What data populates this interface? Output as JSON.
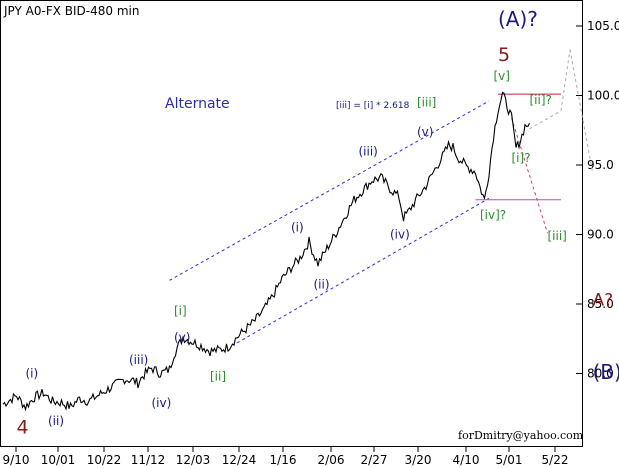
{
  "chart_data": {
    "type": "line",
    "title": "JPY A0-FX BID-480 min",
    "watermark": "forDmitry@yahoo.com",
    "xlabel": "",
    "ylabel": "",
    "ylim": [
      74.0,
      107.0
    ],
    "x_tick_labels": [
      "9/10",
      "10/01",
      "10/22",
      "11/12",
      "12/03",
      "12/24",
      "1/16",
      "2/06",
      "2/27",
      "3/20",
      "4/10",
      "5/01",
      "5/22"
    ],
    "y_tick_labels": [
      "80.0",
      "85.0",
      "90.0",
      "95.0",
      "100.0",
      "105.0"
    ],
    "y_ticks": [
      80,
      85,
      90,
      95,
      100,
      105
    ],
    "grid": false,
    "series": [
      {
        "name": "",
        "color": "#000000",
        "points": [
          [
            0,
            77.8
          ],
          [
            3,
            78.4
          ],
          [
            5,
            77.6
          ],
          [
            7,
            78.3
          ],
          [
            9,
            78.6
          ],
          [
            11,
            78.0
          ],
          [
            13,
            77.9
          ],
          [
            15,
            77.6
          ],
          [
            17,
            78.2
          ],
          [
            19,
            78.0
          ],
          [
            21,
            78.4
          ],
          [
            23,
            78.8
          ],
          [
            25,
            79.2
          ],
          [
            27,
            79.6
          ],
          [
            29,
            79.5
          ],
          [
            30,
            79.3
          ],
          [
            31,
            79.8
          ],
          [
            33,
            80.4
          ],
          [
            35,
            80.0
          ],
          [
            37,
            80.3
          ],
          [
            38,
            81.4
          ],
          [
            39,
            82.0
          ],
          [
            40,
            82.6
          ],
          [
            42,
            82.3
          ],
          [
            44,
            82.0
          ],
          [
            46,
            81.6
          ],
          [
            48,
            81.7
          ],
          [
            50,
            81.9
          ],
          [
            52,
            82.6
          ],
          [
            54,
            83.2
          ],
          [
            56,
            83.8
          ],
          [
            58,
            84.6
          ],
          [
            60,
            85.6
          ],
          [
            62,
            86.8
          ],
          [
            64,
            87.6
          ],
          [
            66,
            88.3
          ],
          [
            68,
            89.5
          ],
          [
            69,
            88.6
          ],
          [
            70,
            87.9
          ],
          [
            72,
            89.0
          ],
          [
            74,
            90.1
          ],
          [
            76,
            91.3
          ],
          [
            78,
            92.5
          ],
          [
            80,
            93.2
          ],
          [
            82,
            93.9
          ],
          [
            84,
            94.1
          ],
          [
            86,
            93.3
          ],
          [
            88,
            92.7
          ],
          [
            89,
            91.2
          ],
          [
            90,
            91.6
          ],
          [
            92,
            92.6
          ],
          [
            94,
            93.5
          ],
          [
            96,
            94.7
          ],
          [
            98,
            95.8
          ],
          [
            99,
            96.4
          ],
          [
            100,
            96.3
          ],
          [
            101,
            95.6
          ],
          [
            103,
            94.9
          ],
          [
            105,
            94.5
          ],
          [
            106,
            93.4
          ],
          [
            107,
            92.5
          ],
          [
            108,
            94.5
          ],
          [
            109,
            97.1
          ],
          [
            110,
            99.0
          ],
          [
            111,
            100.1
          ],
          [
            112,
            99.3
          ],
          [
            113,
            98.4
          ],
          [
            114,
            96.2
          ],
          [
            115,
            96.8
          ],
          [
            116,
            97.8
          ],
          [
            117,
            98.0
          ]
        ]
      }
    ],
    "guide_lines": [
      {
        "kind": "channel",
        "color": "#2d2de0",
        "from": [
          37,
          86.7
        ],
        "to": [
          108,
          99.6
        ]
      },
      {
        "kind": "channel",
        "color": "#2d2de0",
        "from": [
          52,
          82.2
        ],
        "to": [
          108,
          92.6
        ]
      },
      {
        "kind": "resistance",
        "color": "#c0203a",
        "from": [
          110,
          100.1
        ],
        "to": [
          124,
          100.1
        ]
      },
      {
        "kind": "support",
        "color": "#d43fd4",
        "from": [
          105,
          92.5
        ],
        "to": [
          124,
          92.5
        ]
      },
      {
        "kind": "projection",
        "color": "#d43f6a",
        "from": [
          113,
          98.4
        ],
        "to": [
          121,
          90.1
        ]
      },
      {
        "kind": "projection",
        "color": "#aaaaaa",
        "from": [
          117,
          97.6
        ],
        "to": [
          124,
          98.9
        ]
      },
      {
        "kind": "projection",
        "color": "#aaaaaa",
        "from": [
          124,
          98.9
        ],
        "to": [
          126,
          103.3
        ]
      },
      {
        "kind": "projection",
        "color": "#aaaaaa",
        "from": [
          126,
          103.3
        ],
        "to": [
          131,
          94.5
        ]
      }
    ],
    "annotations": [
      {
        "text": "Alternate",
        "x": 36,
        "y": 99.1,
        "color": "#2d2da8",
        "size": 14
      },
      {
        "text": "[iii] = [i] * 2.618",
        "x": 74,
        "y": 99.1,
        "color": "#1a1a80",
        "size": 9
      },
      {
        "text": "(A)?",
        "x": 110,
        "y": 105.0,
        "color": "#1a1a80",
        "size": 20
      },
      {
        "text": "5",
        "x": 110,
        "y": 102.5,
        "color": "#8b1a1a",
        "size": 19
      },
      {
        "text": "[v]",
        "x": 109,
        "y": 101.1,
        "color": "#2e8b2e",
        "size": 12
      },
      {
        "text": "[ii]?",
        "x": 117,
        "y": 99.4,
        "color": "#2e8b2e",
        "size": 12
      },
      {
        "text": "[i]?",
        "x": 113,
        "y": 95.2,
        "color": "#2e8b2e",
        "size": 12
      },
      {
        "text": "[iv]?",
        "x": 106,
        "y": 91.1,
        "color": "#2e8b2e",
        "size": 12
      },
      {
        "text": "[iii]",
        "x": 121,
        "y": 89.6,
        "color": "#2e8b2e",
        "size": 12
      },
      {
        "text": "A?",
        "x": 131,
        "y": 84.9,
        "color": "#8b1a1a",
        "size": 17
      },
      {
        "text": "(B)?",
        "x": 131,
        "y": 79.6,
        "color": "#1a1a80",
        "size": 20
      },
      {
        "text": "[iii]",
        "x": 92,
        "y": 99.2,
        "color": "#2e8b2e",
        "size": 12
      },
      {
        "text": "(v)",
        "x": 92,
        "y": 97.1,
        "color": "#1a1a80",
        "size": 12
      },
      {
        "text": "(iii)",
        "x": 79,
        "y": 95.7,
        "color": "#1a1a80",
        "size": 12
      },
      {
        "text": "(iv)",
        "x": 86,
        "y": 89.7,
        "color": "#1a1a80",
        "size": 12
      },
      {
        "text": "(i)",
        "x": 64,
        "y": 90.2,
        "color": "#1a1a80",
        "size": 12
      },
      {
        "text": "(ii)",
        "x": 69,
        "y": 86.1,
        "color": "#1a1a80",
        "size": 12
      },
      {
        "text": "[i]",
        "x": 38,
        "y": 84.2,
        "color": "#2e8b2e",
        "size": 12
      },
      {
        "text": "(v)",
        "x": 38,
        "y": 82.3,
        "color": "#1a1a80",
        "size": 12
      },
      {
        "text": "[ii]",
        "x": 46,
        "y": 79.5,
        "color": "#2e8b2e",
        "size": 12
      },
      {
        "text": "(iii)",
        "x": 28,
        "y": 80.7,
        "color": "#1a1a80",
        "size": 12
      },
      {
        "text": "(iv)",
        "x": 33,
        "y": 77.6,
        "color": "#1a1a80",
        "size": 12
      },
      {
        "text": "(i)",
        "x": 5,
        "y": 79.7,
        "color": "#1a1a80",
        "size": 12
      },
      {
        "text": "(ii)",
        "x": 10,
        "y": 76.3,
        "color": "#1a1a80",
        "size": 12
      },
      {
        "text": "4",
        "x": 3,
        "y": 75.7,
        "color": "#8b1a1a",
        "size": 19
      }
    ]
  }
}
